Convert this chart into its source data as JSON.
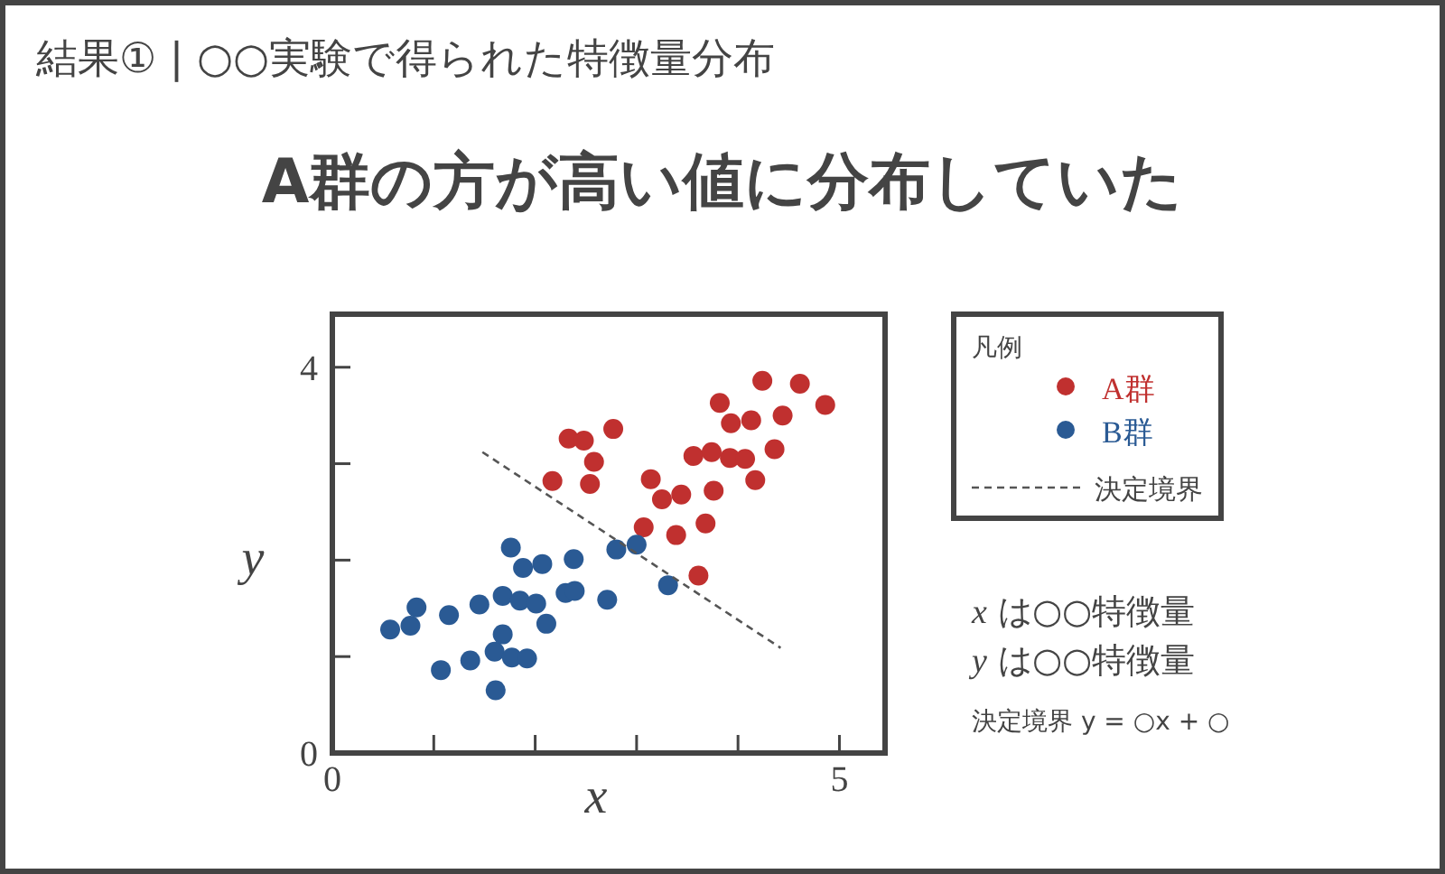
{
  "chart_data": {
    "type": "scatter",
    "title": "結果① | ○○実験で得られた特徴量分布",
    "subtitle": "A群の方が高い値に分布していた",
    "xlabel": "x",
    "ylabel": "y",
    "legend_title": "凡例",
    "legend": "right",
    "marker": "circle",
    "grid": false,
    "xlim": [
      0,
      5.45
    ],
    "ylim": [
      0,
      4.55
    ],
    "xticks": [
      0,
      {
        "value": 1,
        "label": null
      },
      {
        "value": 2,
        "label": null
      },
      {
        "value": 3,
        "label": null
      },
      {
        "value": 4,
        "label": null
      },
      5
    ],
    "yticks": [
      0,
      {
        "value": 1,
        "label": null
      },
      {
        "value": 2,
        "label": null
      },
      {
        "value": 3,
        "label": null
      },
      4
    ],
    "series": [
      {
        "name": "A群",
        "color": "#c0302f",
        "x": [
          2.17,
          2.33,
          2.48,
          2.58,
          2.54,
          2.77,
          3.07,
          3.14,
          3.25,
          3.39,
          3.44,
          3.56,
          3.61,
          3.68,
          3.74,
          3.76,
          3.82,
          3.93,
          3.92,
          4.07,
          4.13,
          4.17,
          4.24,
          4.36,
          4.44,
          4.61,
          4.86
        ],
        "values": [
          2.82,
          3.26,
          3.24,
          3.02,
          2.79,
          3.36,
          2.34,
          2.84,
          2.63,
          2.26,
          2.68,
          3.08,
          1.84,
          2.38,
          3.12,
          2.72,
          3.63,
          3.42,
          3.06,
          3.05,
          3.45,
          2.83,
          3.86,
          3.15,
          3.5,
          3.83,
          3.61
        ]
      },
      {
        "name": "B群",
        "color": "#2a5a94",
        "x": [
          0.57,
          0.77,
          0.83,
          1.07,
          1.15,
          1.36,
          1.45,
          1.6,
          1.61,
          1.68,
          1.68,
          1.76,
          1.77,
          1.85,
          1.88,
          1.92,
          2.01,
          2.07,
          2.11,
          2.3,
          2.39,
          2.38,
          2.71,
          2.8,
          3.0,
          3.31
        ],
        "values": [
          1.28,
          1.32,
          1.51,
          0.86,
          1.43,
          0.96,
          1.54,
          1.05,
          0.65,
          1.23,
          1.63,
          2.13,
          0.99,
          1.58,
          1.92,
          0.98,
          1.55,
          1.96,
          1.34,
          1.66,
          1.68,
          2.01,
          1.59,
          2.11,
          2.16,
          1.74
        ]
      },
      {
        "name": "決定境界",
        "type": "line",
        "line_style": "dashed",
        "marker": "none",
        "color": "#555555",
        "x": [
          1.48,
          4.42
        ],
        "values": [
          3.12,
          1.09
        ]
      }
    ],
    "annotations": [
      "*x* は○○特徴量",
      "*y* は○○特徴量",
      "決定境界 y = ○x + ○"
    ]
  }
}
